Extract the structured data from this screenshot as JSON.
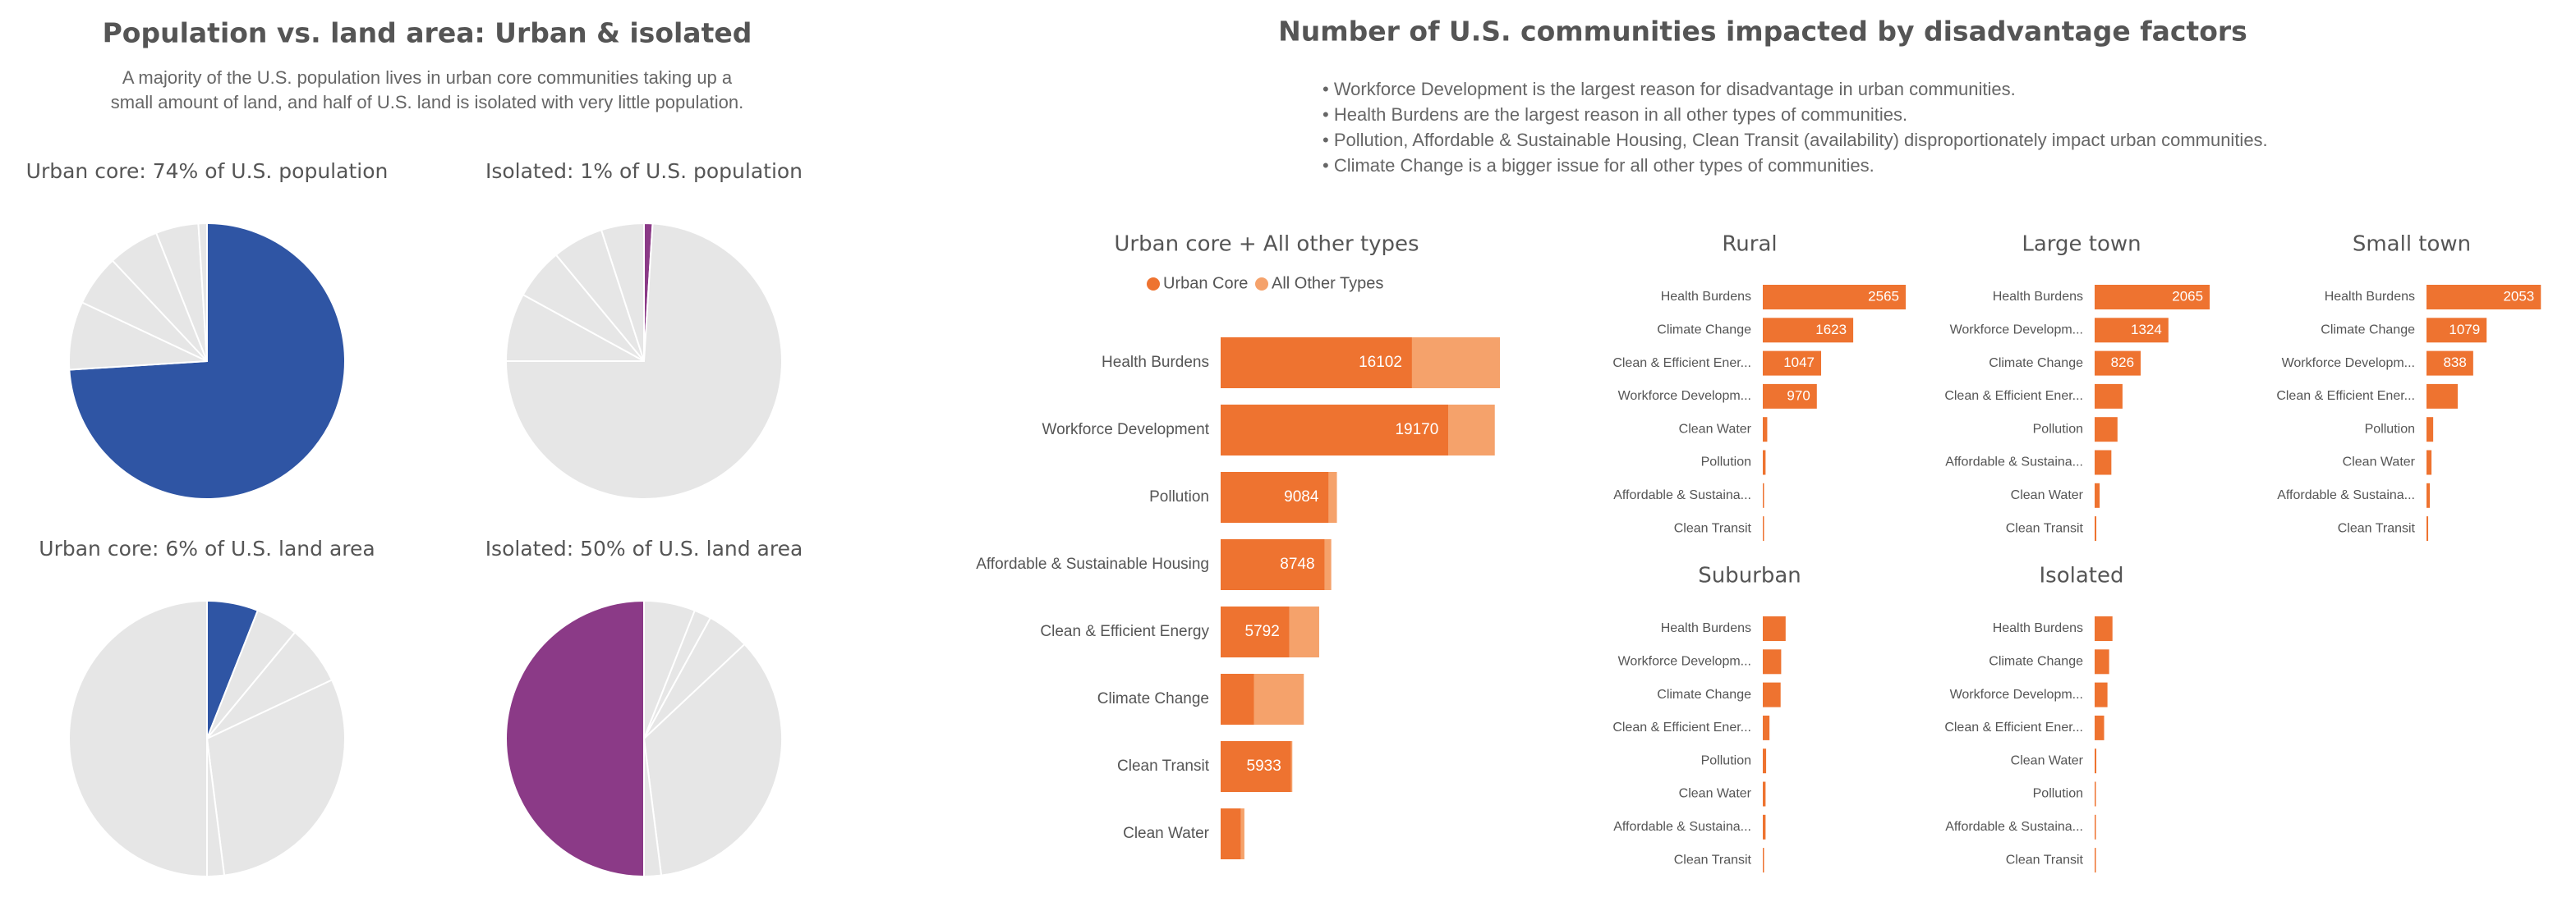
{
  "left": {
    "title": "Population vs. land area: Urban & isolated",
    "subtitle_lines": [
      "A majority of the U.S. population lives in urban core communities taking up a",
      "small amount of land, and half of U.S. land is isolated with very little population."
    ]
  },
  "right": {
    "title": "Number of U.S. communities impacted by disadvantage factors",
    "bullets": [
      "• Workforce Development is the largest reason for disadvantage in urban communities.",
      "• Health Burdens are the largest reason in all other types of communities.",
      "• Pollution, Affordable & Sustainable Housing, Clean Transit (availability) disproportionately impact urban communities.",
      "• Climate Change is a bigger issue for all other types of communities."
    ]
  },
  "chart_data": [
    {
      "type": "pie",
      "title": "Urban core: 74% of U.S. population",
      "values": [
        74,
        8,
        6,
        6,
        5,
        1
      ],
      "colors": [
        "#2f55a4",
        "#e6e6e6",
        "#e6e6e6",
        "#e6e6e6",
        "#e6e6e6",
        "#e6e6e6"
      ]
    },
    {
      "type": "pie",
      "title": "Isolated: 1% of U.S. population",
      "values": [
        1,
        74,
        8,
        6,
        6,
        5
      ],
      "colors": [
        "#8b3a87",
        "#e6e6e6",
        "#e6e6e6",
        "#e6e6e6",
        "#e6e6e6",
        "#e6e6e6"
      ]
    },
    {
      "type": "pie",
      "title": "Urban core: 6% of U.S. land area",
      "values": [
        6,
        5,
        7,
        30,
        2,
        50
      ],
      "colors": [
        "#2f55a4",
        "#e6e6e6",
        "#e6e6e6",
        "#e6e6e6",
        "#e6e6e6",
        "#e6e6e6"
      ]
    },
    {
      "type": "pie",
      "title": "Isolated: 50% of U.S. land area",
      "values": [
        6,
        2,
        5,
        35,
        2,
        50
      ],
      "colors": [
        "#e6e6e6",
        "#e6e6e6",
        "#e6e6e6",
        "#e6e6e6",
        "#e6e6e6",
        "#8b3a87"
      ]
    },
    {
      "type": "stacked_bar",
      "title": "Urban core + All other types",
      "categories": [
        "Health Burdens",
        "Workforce Development",
        "Pollution",
        "Affordable & Sustainable Housing",
        "Clean & Efficient Energy",
        "Climate Change",
        "Clean Transit",
        "Clean Water"
      ],
      "series": [
        {
          "name": "Urban Core",
          "color": "#ee7330",
          "values": [
            16102,
            19170,
            9084,
            8748,
            5792,
            2800,
            5933,
            1700
          ]
        },
        {
          "name": "All Other Types",
          "color": "#f5a26b",
          "values": [
            7400,
            3900,
            700,
            560,
            2500,
            4200,
            100,
            300
          ]
        }
      ]
    },
    {
      "type": "bar",
      "title": "Rural",
      "color": "#ee7330",
      "categories": [
        "Health Burdens",
        "Climate Change",
        "Clean & Efficient Ener...",
        "Workforce Developm...",
        "Clean Water",
        "Pollution",
        "Affordable & Sustaina...",
        "Clean Transit"
      ],
      "values": [
        2565,
        1623,
        1047,
        970,
        80,
        50,
        20,
        5
      ]
    },
    {
      "type": "bar",
      "title": "Large town",
      "color": "#ee7330",
      "categories": [
        "Health Burdens",
        "Workforce Developm...",
        "Climate Change",
        "Clean & Efficient Ener...",
        "Pollution",
        "Affordable & Sustaina...",
        "Clean Water",
        "Clean Transit"
      ],
      "values": [
        2065,
        1324,
        826,
        500,
        410,
        300,
        90,
        30
      ]
    },
    {
      "type": "bar",
      "title": "Small town",
      "color": "#ee7330",
      "categories": [
        "Health Burdens",
        "Climate Change",
        "Workforce Developm...",
        "Clean & Efficient Ener...",
        "Pollution",
        "Clean Water",
        "Affordable & Sustaina...",
        "Clean Transit"
      ],
      "values": [
        2053,
        1079,
        838,
        560,
        120,
        90,
        60,
        30
      ]
    },
    {
      "type": "bar",
      "title": "Suburban",
      "color": "#ee7330",
      "categories": [
        "Health Burdens",
        "Workforce Developm...",
        "Climate Change",
        "Clean & Efficient Ener...",
        "Pollution",
        "Clean Water",
        "Affordable & Sustaina...",
        "Clean Transit"
      ],
      "values": [
        410,
        330,
        320,
        120,
        60,
        50,
        50,
        20
      ]
    },
    {
      "type": "bar",
      "title": "Isolated",
      "color": "#ee7330",
      "categories": [
        "Health Burdens",
        "Climate Change",
        "Workforce Developm...",
        "Clean & Efficient Ener...",
        "Clean Water",
        "Pollution",
        "Affordable & Sustaina...",
        "Clean Transit"
      ],
      "values": [
        320,
        260,
        230,
        170,
        30,
        20,
        15,
        5
      ]
    }
  ]
}
